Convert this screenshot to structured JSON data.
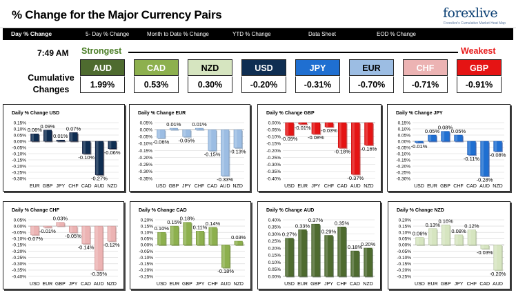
{
  "header": {
    "title": "% Change for the Major Currency Pairs",
    "logo_text": "forexlive",
    "logo_tagline": "Forexlive's Cumulative Market Heat Map"
  },
  "tabs": [
    {
      "label": "Day % Change",
      "active": true
    },
    {
      "label": "5- Day % Change",
      "active": false
    },
    {
      "label": "Month to Date % Change",
      "active": false
    },
    {
      "label": "YTD % Change",
      "active": false
    },
    {
      "label": "Data Sheet",
      "active": false
    },
    {
      "label": "EOD % Change",
      "active": false
    }
  ],
  "summary": {
    "time": "7:49 AM",
    "cumulative_label": "Cumulative Changes",
    "strongest_label": "Strongest",
    "weakest_label": "Weakest",
    "currencies": [
      {
        "name": "AUD",
        "value": "1.99%",
        "color": "#4e6b2f",
        "text_color": "#ffffff"
      },
      {
        "name": "CAD",
        "value": "0.53%",
        "color": "#8db04e",
        "text_color": "#ffffff"
      },
      {
        "name": "NZD",
        "value": "0.30%",
        "color": "#d6e5c0",
        "text_color": "#000000"
      },
      {
        "name": "USD",
        "value": "-0.20%",
        "color": "#0f2e52",
        "text_color": "#ffffff"
      },
      {
        "name": "JPY",
        "value": "-0.31%",
        "color": "#1f6fd1",
        "text_color": "#ffffff"
      },
      {
        "name": "EUR",
        "value": "-0.70%",
        "color": "#9cbde3",
        "text_color": "#000000"
      },
      {
        "name": "CHF",
        "value": "-0.71%",
        "color": "#ecb3b3",
        "text_color": "#ffffff"
      },
      {
        "name": "GBP",
        "value": "-0.91%",
        "color": "#e51414",
        "text_color": "#ffffff"
      }
    ]
  },
  "chart_data": [
    {
      "type": "bar",
      "title": "Daily % Change USD",
      "categories": [
        "EUR",
        "GBP",
        "JPY",
        "CHF",
        "CAD",
        "AUD",
        "NZD"
      ],
      "values": [
        0.06,
        0.09,
        0.01,
        0.07,
        -0.1,
        -0.27,
        -0.06
      ],
      "labels": [
        "0.06%",
        "0.09%",
        "0.01%",
        "0.07%",
        "-0.10%",
        "-0.27%",
        "-0.06%"
      ],
      "ylim": [
        -0.3,
        0.15
      ],
      "yticks": [
        -0.3,
        -0.25,
        -0.2,
        -0.15,
        -0.1,
        -0.05,
        0.0,
        0.05,
        0.1,
        0.15
      ],
      "yfmt": 2,
      "color": "#0f2e52"
    },
    {
      "type": "bar",
      "title": "Daily % Change EUR",
      "categories": [
        "USD",
        "GBP",
        "JPY",
        "CHF",
        "CAD",
        "AUD",
        "NZD"
      ],
      "values": [
        -0.06,
        0.01,
        -0.05,
        0.01,
        -0.15,
        -0.33,
        -0.13
      ],
      "labels": [
        "-0.06%",
        "0.01%",
        "-0.05%",
        "0.01%",
        "-0.15%",
        "-0.33%",
        "-0.13%"
      ],
      "ylim": [
        -0.35,
        0.05
      ],
      "yticks": [
        -0.35,
        -0.3,
        -0.25,
        -0.2,
        -0.15,
        -0.1,
        -0.05,
        0.0,
        0.05
      ],
      "yfmt": 2,
      "color": "#9cbde3"
    },
    {
      "type": "bar",
      "title": "Daily % Change GBP",
      "categories": [
        "USD",
        "EUR",
        "JPY",
        "CHF",
        "CAD",
        "AUD",
        "NZD"
      ],
      "values": [
        -0.09,
        -0.01,
        -0.08,
        -0.03,
        -0.18,
        -0.37,
        -0.16
      ],
      "labels": [
        "-0.09%",
        "-0.01%",
        "-0.08%",
        "-0.03%",
        "-0.18%",
        "-0.37%",
        "-0.16%"
      ],
      "ylim": [
        -0.4,
        0.0
      ],
      "yticks": [
        -0.4,
        -0.35,
        -0.3,
        -0.25,
        -0.2,
        -0.15,
        -0.1,
        -0.05,
        0.0
      ],
      "yfmt": 2,
      "color": "#e51414"
    },
    {
      "type": "bar",
      "title": "Daily % Change JPY",
      "categories": [
        "USD",
        "EUR",
        "GBP",
        "CHF",
        "CAD",
        "AUD",
        "NZD"
      ],
      "values": [
        -0.01,
        0.05,
        0.08,
        0.05,
        -0.11,
        -0.28,
        -0.08
      ],
      "labels": [
        "-0.01%",
        "0.05%",
        "0.08%",
        "0.05%",
        "-0.11%",
        "-0.28%",
        "-0.08%"
      ],
      "ylim": [
        -0.3,
        0.15
      ],
      "yticks": [
        -0.3,
        -0.25,
        -0.2,
        -0.15,
        -0.1,
        -0.05,
        0.0,
        0.05,
        0.1,
        0.15
      ],
      "yfmt": 2,
      "color": "#1f6fd1"
    },
    {
      "type": "bar",
      "title": "Daily % Change CHF",
      "categories": [
        "USD",
        "EUR",
        "GBP",
        "JPY",
        "CAD",
        "AUD",
        "NZD"
      ],
      "values": [
        -0.07,
        -0.01,
        0.03,
        -0.05,
        -0.14,
        -0.35,
        -0.12
      ],
      "labels": [
        "-0.07%",
        "-0.01%",
        "0.03%",
        "-0.05%",
        "-0.14%",
        "-0.35%",
        "-0.12%"
      ],
      "ylim": [
        -0.4,
        0.05
      ],
      "yticks": [
        -0.4,
        -0.35,
        -0.3,
        -0.25,
        -0.2,
        -0.15,
        -0.1,
        -0.05,
        0.0,
        0.05
      ],
      "yfmt": 2,
      "color": "#ecb3b3"
    },
    {
      "type": "bar",
      "title": "Daily % Change CAD",
      "categories": [
        "USD",
        "EUR",
        "GBP",
        "JPY",
        "CHF",
        "AUD",
        "NZD"
      ],
      "values": [
        0.1,
        0.15,
        0.18,
        0.11,
        0.14,
        -0.18,
        0.03
      ],
      "labels": [
        "0.10%",
        "0.15%",
        "0.18%",
        "0.11%",
        "0.14%",
        "-0.18%",
        "0.03%"
      ],
      "ylim": [
        -0.25,
        0.2
      ],
      "yticks": [
        -0.25,
        -0.2,
        -0.15,
        -0.1,
        -0.05,
        0.0,
        0.05,
        0.1,
        0.15,
        0.2
      ],
      "yfmt": 2,
      "color": "#8db04e"
    },
    {
      "type": "bar",
      "title": "Daily % Change AUD",
      "categories": [
        "USD",
        "EUR",
        "GBP",
        "JPY",
        "CHF",
        "CAD",
        "NZD"
      ],
      "values": [
        0.27,
        0.33,
        0.37,
        0.29,
        0.35,
        0.18,
        0.2
      ],
      "labels": [
        "0.27%",
        "0.33%",
        "0.37%",
        "0.29%",
        "0.35%",
        "0.18%",
        "0.20%"
      ],
      "ylim": [
        0.0,
        0.4
      ],
      "yticks": [
        0.0,
        0.05,
        0.1,
        0.15,
        0.2,
        0.25,
        0.3,
        0.35,
        0.4
      ],
      "yfmt": 2,
      "color": "#4e6b2f"
    },
    {
      "type": "bar",
      "title": "Daily % Change NZD",
      "categories": [
        "USD",
        "EUR",
        "GBP",
        "JPY",
        "CHF",
        "CAD",
        "AUD"
      ],
      "values": [
        0.06,
        0.13,
        0.16,
        0.08,
        0.12,
        -0.03,
        -0.2
      ],
      "labels": [
        "0.06%",
        "0.13%",
        "0.16%",
        "0.08%",
        "0.12%",
        "-0.03%",
        "-0.20%"
      ],
      "ylim": [
        -0.25,
        0.2
      ],
      "yticks": [
        -0.25,
        -0.2,
        -0.15,
        -0.1,
        -0.05,
        0.0,
        0.05,
        0.1,
        0.15,
        0.2
      ],
      "yfmt": 2,
      "color": "#d6e5c0"
    }
  ]
}
